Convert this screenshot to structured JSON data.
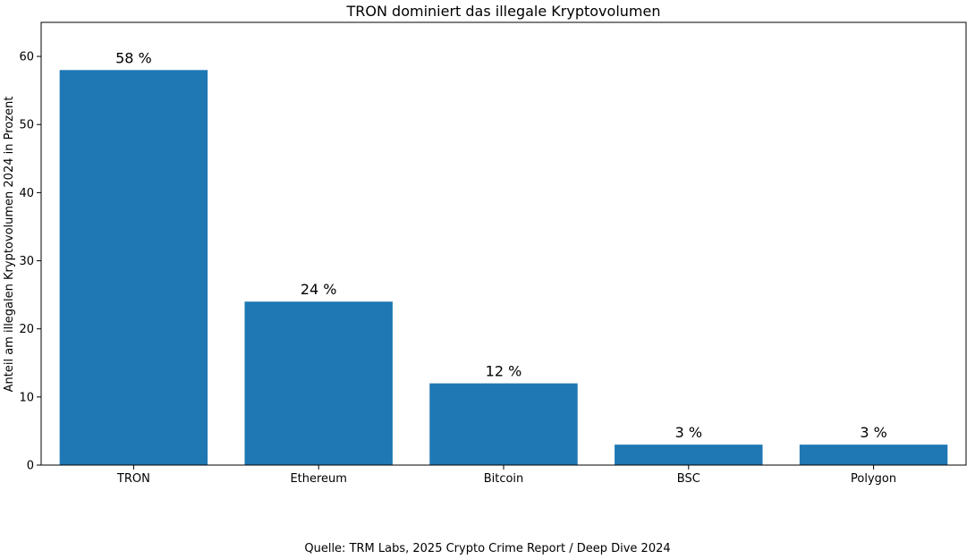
{
  "source_note": "Quelle: TRM Labs, 2025 Crypto Crime Report / Deep Dive 2024",
  "chart_data": {
    "type": "bar",
    "title": "TRON dominiert das illegale Kryptovolumen",
    "xlabel": "",
    "ylabel": "Anteil am illegalen Kryptovolumen 2024 in Prozent",
    "categories": [
      "TRON",
      "Ethereum",
      "Bitcoin",
      "BSC",
      "Polygon"
    ],
    "values": [
      58,
      24,
      12,
      3,
      3
    ],
    "value_labels": [
      "58 %",
      "24 %",
      "12 %",
      "3 %",
      "3 %"
    ],
    "ylim": [
      0,
      65
    ],
    "yticks": [
      0,
      10,
      20,
      30,
      40,
      50,
      60
    ],
    "bar_color": "#1f77b4",
    "grid": false,
    "legend": "none"
  }
}
